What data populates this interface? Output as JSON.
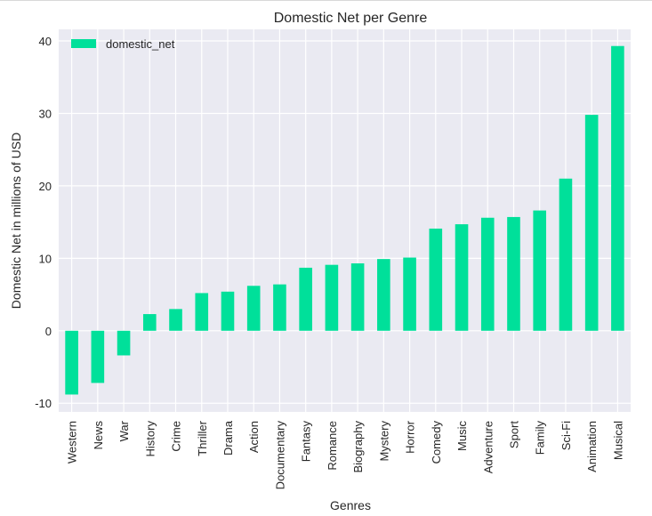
{
  "chart_data": {
    "type": "bar",
    "title": "Domestic Net per Genre",
    "xlabel": "Genres",
    "ylabel": "Domestic Net in millions of USD",
    "legend": {
      "entries": [
        "domestic_net"
      ],
      "placement": "top-left"
    },
    "grid": true,
    "ylim": [
      -11.2,
      41.6
    ],
    "yticks": [
      -10,
      0,
      10,
      20,
      30,
      40
    ],
    "categories": [
      "Western",
      "News",
      "War",
      "History",
      "Crime",
      "Thriller",
      "Drama",
      "Action",
      "Documentary",
      "Fantasy",
      "Romance",
      "Biography",
      "Mystery",
      "Horror",
      "Comedy",
      "Music",
      "Adventure",
      "Sport",
      "Family",
      "Sci-Fi",
      "Animation",
      "Musical"
    ],
    "series": [
      {
        "name": "domestic_net",
        "color": "#00e09a",
        "values": [
          -8.8,
          -7.2,
          -3.4,
          2.3,
          3.0,
          5.2,
          5.4,
          6.2,
          6.4,
          8.7,
          9.1,
          9.3,
          9.9,
          10.1,
          14.1,
          14.7,
          15.6,
          15.7,
          16.6,
          21.0,
          29.8,
          39.3
        ]
      }
    ]
  },
  "style": {
    "plot_background": "#eaeaf2",
    "grid_color": "#ffffff",
    "text_color": "#262626"
  }
}
